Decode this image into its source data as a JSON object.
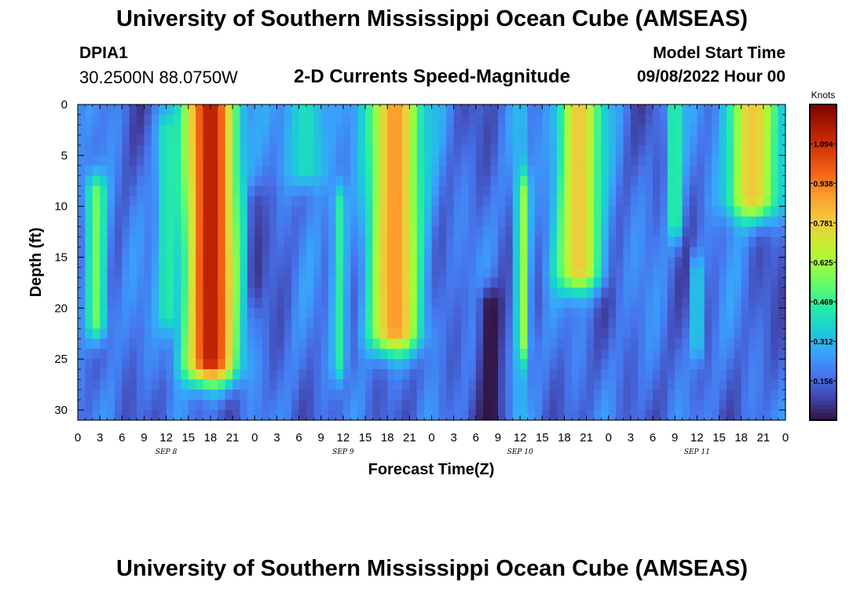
{
  "header": {
    "title": "University of Southern Mississippi Ocean Cube (AMSEAS)",
    "station_id": "DPIA1",
    "coordinates": "30.2500N  88.0750W",
    "subtitle": "2-D Currents Speed-Magnitude",
    "model_start_label": "Model Start Time",
    "model_start_value": "09/08/2022 Hour 00"
  },
  "footer": {
    "title": "University of Southern Mississippi Ocean Cube (AMSEAS)"
  },
  "chart_data": {
    "type": "heatmap",
    "title": "2-D Currents Speed-Magnitude",
    "xlabel": "Forecast Time(Z)",
    "ylabel": "Depth (ft)",
    "x_ticks": [
      "0",
      "3",
      "6",
      "9",
      "12",
      "15",
      "18",
      "21",
      "0",
      "3",
      "6",
      "9",
      "12",
      "15",
      "18",
      "21",
      "0",
      "3",
      "6",
      "9",
      "12",
      "15",
      "18",
      "21",
      "0",
      "3",
      "6",
      "9",
      "12",
      "15",
      "18",
      "21",
      "0"
    ],
    "day_labels": [
      {
        "label": "SEP 8",
        "hour": 12
      },
      {
        "label": "SEP 9",
        "hour": 36
      },
      {
        "label": "SEP 10",
        "hour": 60
      },
      {
        "label": "SEP 11",
        "hour": 84
      }
    ],
    "xlim_hours": [
      0,
      96
    ],
    "y_ticks": [
      0,
      5,
      10,
      15,
      20,
      25,
      30
    ],
    "ylim": [
      0,
      31
    ],
    "y_inverted": true,
    "colorbar": {
      "label": "Knots",
      "ticks": [
        "1.094",
        "0.938",
        "0.781",
        "0.625",
        "0.469",
        "0.312",
        "0.156"
      ],
      "tick_values": [
        1.094,
        0.938,
        0.781,
        0.625,
        0.469,
        0.312,
        0.156
      ],
      "range": [
        0,
        1.25
      ],
      "colors": [
        "#30123b",
        "#4145ab",
        "#4675ed",
        "#39a2fc",
        "#1bcfd4",
        "#24eca6",
        "#61fc6c",
        "#a4fc3b",
        "#d1e834",
        "#f3c63a",
        "#fe9b2d",
        "#f36315",
        "#d93806",
        "#b11901",
        "#7a0402"
      ]
    },
    "structure": {
      "features": [
        {
          "hour": 2.5,
          "top_depth": 9,
          "bottom_depth": 21,
          "speed": 0.55,
          "width_hours": 1.5
        },
        {
          "hour": 12,
          "top_depth": 3,
          "bottom_depth": 20,
          "speed": 0.4,
          "width_hours": 1.4
        },
        {
          "hour": 18,
          "top_depth": 0,
          "bottom_depth": 25,
          "speed": 1.15,
          "width_hours": 3.5
        },
        {
          "hour": 24,
          "top_depth": 10,
          "bottom_depth": 17,
          "speed": 0.02,
          "width_hours": 0.6
        },
        {
          "hour": 31,
          "top_depth": 0,
          "bottom_depth": 6,
          "speed": 0.4,
          "width_hours": 3.0
        },
        {
          "hour": 35.5,
          "top_depth": 10,
          "bottom_depth": 25,
          "speed": 0.45,
          "width_hours": 1.0
        },
        {
          "hour": 43,
          "top_depth": 0,
          "bottom_depth": 22,
          "speed": 0.9,
          "width_hours": 3.5
        },
        {
          "hour": 56,
          "top_depth": 20,
          "bottom_depth": 31,
          "speed": 0.0,
          "width_hours": 1.8
        },
        {
          "hour": 60,
          "top_depth": 0,
          "bottom_depth": 31,
          "speed": 0.32,
          "width_hours": 1.0
        },
        {
          "hour": 60.5,
          "top_depth": 9,
          "bottom_depth": 23,
          "speed": 0.6,
          "width_hours": 0.8
        },
        {
          "hour": 68,
          "top_depth": 0,
          "bottom_depth": 16,
          "speed": 0.8,
          "width_hours": 3.0
        },
        {
          "hour": 81,
          "top_depth": 0,
          "bottom_depth": 11,
          "speed": 0.5,
          "width_hours": 1.0
        },
        {
          "hour": 84,
          "top_depth": 17,
          "bottom_depth": 23,
          "speed": 0.4,
          "width_hours": 0.8
        },
        {
          "hour": 91.5,
          "top_depth": 0,
          "bottom_depth": 9,
          "speed": 0.8,
          "width_hours": 3.5
        }
      ]
    }
  }
}
